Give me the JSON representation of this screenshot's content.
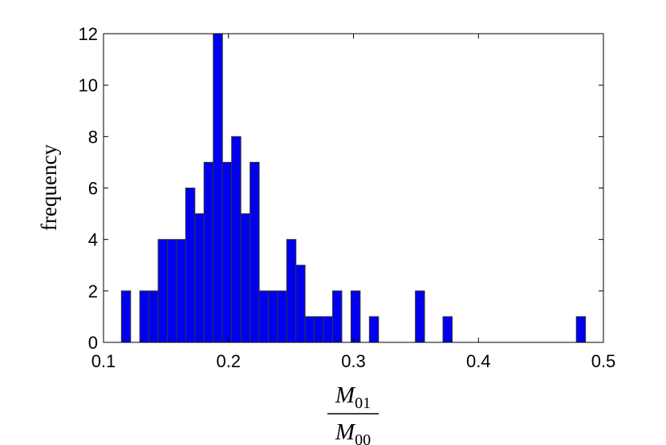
{
  "chart_data": {
    "type": "bar",
    "subtype": "histogram",
    "title": "",
    "ylabel": "frequency",
    "xlabel": {
      "numerator": {
        "symbol": "M",
        "subscript": "01"
      },
      "denominator": {
        "symbol": "M",
        "subscript": "00"
      }
    },
    "xlim": [
      0.1,
      0.5
    ],
    "ylim": [
      0,
      12
    ],
    "xticks": [
      "0.1",
      "0.2",
      "0.3",
      "0.4",
      "0.5"
    ],
    "yticks": [
      "0",
      "2",
      "4",
      "6",
      "8",
      "10",
      "12"
    ],
    "bin_width": 0.00735,
    "bar_color": "#0000ee",
    "edge_color": "#333333",
    "grid": false,
    "bins": [
      {
        "x": 0.118,
        "count": 2
      },
      {
        "x": 0.1327,
        "count": 2
      },
      {
        "x": 0.14,
        "count": 2
      },
      {
        "x": 0.1474,
        "count": 4
      },
      {
        "x": 0.1547,
        "count": 4
      },
      {
        "x": 0.1621,
        "count": 4
      },
      {
        "x": 0.1694,
        "count": 6
      },
      {
        "x": 0.1768,
        "count": 5
      },
      {
        "x": 0.1841,
        "count": 7
      },
      {
        "x": 0.1915,
        "count": 12
      },
      {
        "x": 0.1988,
        "count": 7
      },
      {
        "x": 0.2062,
        "count": 8
      },
      {
        "x": 0.2135,
        "count": 5
      },
      {
        "x": 0.2209,
        "count": 7
      },
      {
        "x": 0.2282,
        "count": 2
      },
      {
        "x": 0.2356,
        "count": 2
      },
      {
        "x": 0.2429,
        "count": 2
      },
      {
        "x": 0.2503,
        "count": 4
      },
      {
        "x": 0.2576,
        "count": 3
      },
      {
        "x": 0.265,
        "count": 1
      },
      {
        "x": 0.2723,
        "count": 1
      },
      {
        "x": 0.2797,
        "count": 1
      },
      {
        "x": 0.287,
        "count": 2
      },
      {
        "x": 0.3017,
        "count": 2
      },
      {
        "x": 0.3164,
        "count": 1
      },
      {
        "x": 0.3532,
        "count": 2
      },
      {
        "x": 0.3753,
        "count": 1
      },
      {
        "x": 0.482,
        "count": 1
      }
    ]
  }
}
